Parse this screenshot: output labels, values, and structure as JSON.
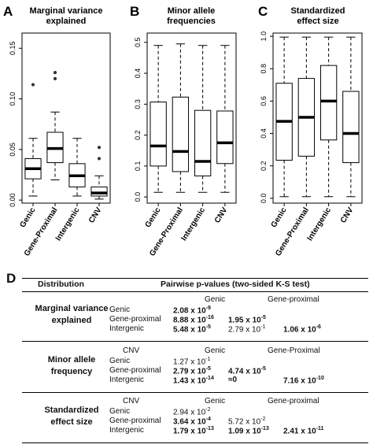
{
  "panels": [
    {
      "letter": "A",
      "title_lines": [
        "Marginal variance",
        "explained"
      ]
    },
    {
      "letter": "B",
      "title_lines": [
        "Minor allele",
        "frequencies"
      ]
    },
    {
      "letter": "C",
      "title_lines": [
        "Standardized",
        "effect size"
      ]
    }
  ],
  "chart_data": [
    {
      "type": "box",
      "title": "Marginal variance explained",
      "categories": [
        "Genic",
        "Gene-Proximal",
        "Intergenic",
        "CNV"
      ],
      "yticks": [
        "0.00",
        "0.05",
        "0.10",
        "0.15"
      ],
      "ylim": [
        -0.003,
        0.165
      ],
      "boxes": [
        {
          "min": 0.004,
          "q1": 0.021,
          "median": 0.031,
          "q3": 0.041,
          "max": 0.061,
          "outliers": [
            0.114
          ]
        },
        {
          "min": 0.02,
          "q1": 0.037,
          "median": 0.051,
          "q3": 0.067,
          "max": 0.087,
          "outliers": [
            0.12,
            0.126
          ]
        },
        {
          "min": 0.004,
          "q1": 0.013,
          "median": 0.024,
          "q3": 0.036,
          "max": 0.061,
          "outliers": []
        },
        {
          "min": 0.001,
          "q1": 0.004,
          "median": 0.007,
          "q3": 0.013,
          "max": 0.024,
          "outliers": [
            0.041,
            0.052
          ]
        }
      ]
    },
    {
      "type": "box",
      "title": "Minor allele frequencies",
      "categories": [
        "Genic",
        "Gene-Proximal",
        "Intergenic",
        "CNV"
      ],
      "yticks": [
        "0.0",
        "0.1",
        "0.2",
        "0.3",
        "0.4",
        "0.5"
      ],
      "ylim": [
        -0.02,
        0.53
      ],
      "boxes": [
        {
          "min": 0.015,
          "q1": 0.1,
          "median": 0.165,
          "q3": 0.307,
          "max": 0.49,
          "outliers": []
        },
        {
          "min": 0.015,
          "q1": 0.082,
          "median": 0.147,
          "q3": 0.323,
          "max": 0.495,
          "outliers": []
        },
        {
          "min": 0.015,
          "q1": 0.068,
          "median": 0.115,
          "q3": 0.28,
          "max": 0.49,
          "outliers": []
        },
        {
          "min": 0.015,
          "q1": 0.108,
          "median": 0.175,
          "q3": 0.278,
          "max": 0.49,
          "outliers": []
        }
      ]
    },
    {
      "type": "box",
      "title": "Standardized effect size",
      "categories": [
        "Genic",
        "Gene-Proximal",
        "Intergenic",
        "CNV"
      ],
      "yticks": [
        "0.0",
        "0.2",
        "0.4",
        "0.6",
        "0.8",
        "1.0"
      ],
      "ylim": [
        -0.03,
        1.02
      ],
      "boxes": [
        {
          "min": 0.01,
          "q1": 0.235,
          "median": 0.475,
          "q3": 0.71,
          "max": 0.995,
          "outliers": []
        },
        {
          "min": 0.01,
          "q1": 0.26,
          "median": 0.5,
          "q3": 0.74,
          "max": 0.995,
          "outliers": []
        },
        {
          "min": 0.01,
          "q1": 0.36,
          "median": 0.6,
          "q3": 0.82,
          "max": 0.995,
          "outliers": []
        },
        {
          "min": 0.01,
          "q1": 0.22,
          "median": 0.4,
          "q3": 0.66,
          "max": 0.995,
          "outliers": []
        }
      ]
    }
  ],
  "table": {
    "letter": "D",
    "header_distribution": "Distribution",
    "header_pvalues": "Pairwise p-values (two-sided K-S test)",
    "groups": [
      {
        "name_lines": [
          "Marginal variance",
          "explained"
        ],
        "col_headers": [
          "",
          "Genic",
          "Gene-proximal"
        ],
        "rows": [
          {
            "label": "Genic",
            "cells": [
              {
                "text": "2.08 x 10",
                "sup": "-9",
                "bold": true
              },
              null,
              null
            ]
          },
          {
            "label": "Gene-proximal",
            "cells": [
              {
                "text": "8.88 x 10",
                "sup": "-16",
                "bold": true
              },
              {
                "text": "1.95 x 10",
                "sup": "-5",
                "bold": true
              },
              null
            ]
          },
          {
            "label": "Intergenic",
            "cells": [
              {
                "text": "5.48 x 10",
                "sup": "-5",
                "bold": true
              },
              {
                "text": "2.79 x 10",
                "sup": "-1",
                "bold": false
              },
              {
                "text": "1.06 x 10",
                "sup": "-6",
                "bold": true
              }
            ]
          }
        ]
      },
      {
        "name_lines": [
          "Minor allele",
          "frequency"
        ],
        "col_headers": [
          "CNV",
          "Genic",
          "Gene-Proximal"
        ],
        "rows": [
          {
            "label": "Genic",
            "cells": [
              {
                "text": "1.27 x 10",
                "sup": "-1",
                "bold": false
              },
              null,
              null
            ]
          },
          {
            "label": "Gene-proximal",
            "cells": [
              {
                "text": "2.79 x 10",
                "sup": "-5",
                "bold": true
              },
              {
                "text": "4.74 x 10",
                "sup": "-5",
                "bold": true
              },
              null
            ]
          },
          {
            "label": "Intergenic",
            "cells": [
              {
                "text": "1.43 x 10",
                "sup": "-14",
                "bold": true
              },
              {
                "text": "≈0",
                "sup": "",
                "bold": true
              },
              {
                "text": "7.16 x 10",
                "sup": "-10",
                "bold": true
              }
            ]
          }
        ]
      },
      {
        "name_lines": [
          "Standardized",
          "effect size"
        ],
        "col_headers": [
          "CNV",
          "Genic",
          "Gene-proximal"
        ],
        "rows": [
          {
            "label": "Genic",
            "cells": [
              {
                "text": "2.94 x 10",
                "sup": "-2",
                "bold": false
              },
              null,
              null
            ]
          },
          {
            "label": "Gene-proximal",
            "cells": [
              {
                "text": "3.64 x 10",
                "sup": "-4",
                "bold": true
              },
              {
                "text": "5.72 x 10",
                "sup": "-2",
                "bold": false
              },
              null
            ]
          },
          {
            "label": "Intergenic",
            "cells": [
              {
                "text": "1.79 x 10",
                "sup": "-13",
                "bold": true
              },
              {
                "text": "1.09 x 10",
                "sup": "-13",
                "bold": true
              },
              {
                "text": "2.41 x 10",
                "sup": "-11",
                "bold": true
              }
            ]
          }
        ]
      }
    ]
  }
}
